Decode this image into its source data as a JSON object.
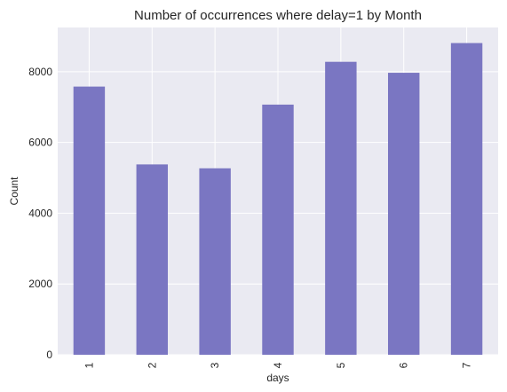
{
  "chart_data": {
    "type": "bar",
    "title": "Number of occurrences where delay=1 by Month",
    "xlabel": "days",
    "ylabel": "Count",
    "categories": [
      "1",
      "2",
      "3",
      "4",
      "5",
      "6",
      "7"
    ],
    "values": [
      7580,
      5380,
      5270,
      7070,
      8280,
      7970,
      8810
    ],
    "ylim": [
      0,
      9250
    ],
    "yticks": [
      0,
      2000,
      4000,
      6000,
      8000
    ],
    "grid": true,
    "colors": {
      "bar": "#7a76c2",
      "plot_background": "#eaeaf2",
      "grid": "#ffffff",
      "text": "#262626"
    }
  }
}
